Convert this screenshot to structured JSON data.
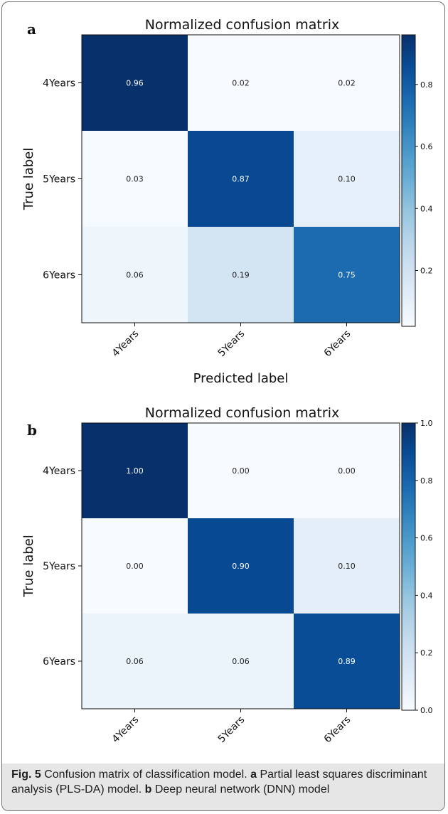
{
  "chart_data": [
    {
      "type": "heatmap",
      "panel": "a",
      "title": "Normalized confusion matrix",
      "xlabel": "Predicted label",
      "ylabel": "True label",
      "x_categories": [
        "4Years",
        "5Years",
        "6Years"
      ],
      "y_categories": [
        "4Years",
        "5Years",
        "6Years"
      ],
      "values": [
        [
          0.96,
          0.02,
          0.02
        ],
        [
          0.03,
          0.87,
          0.1
        ],
        [
          0.06,
          0.19,
          0.75
        ]
      ],
      "value_labels": [
        [
          "0.96",
          "0.02",
          "0.02"
        ],
        [
          "0.03",
          "0.87",
          "0.10"
        ],
        [
          "0.06",
          "0.19",
          "0.75"
        ]
      ],
      "colormap": "Blues",
      "colorbar_range": [
        0.02,
        0.96
      ],
      "colorbar_ticks": [
        "0.2",
        "0.4",
        "0.6",
        "0.8"
      ],
      "colorbar_tick_values": [
        0.2,
        0.4,
        0.6,
        0.8
      ],
      "show_xlabel": true
    },
    {
      "type": "heatmap",
      "panel": "b",
      "title": "Normalized confusion matrix",
      "xlabel": "",
      "ylabel": "True label",
      "x_categories": [
        "4Years",
        "5Years",
        "6Years"
      ],
      "y_categories": [
        "4Years",
        "5Years",
        "6Years"
      ],
      "values": [
        [
          1.0,
          0.0,
          0.0
        ],
        [
          0.0,
          0.9,
          0.1
        ],
        [
          0.06,
          0.06,
          0.89
        ]
      ],
      "value_labels": [
        [
          "1.00",
          "0.00",
          "0.00"
        ],
        [
          "0.00",
          "0.90",
          "0.10"
        ],
        [
          "0.06",
          "0.06",
          "0.89"
        ]
      ],
      "colormap": "Blues",
      "colorbar_range": [
        0.0,
        1.0
      ],
      "colorbar_ticks": [
        "0.0",
        "0.2",
        "0.4",
        "0.6",
        "0.8",
        "1.0"
      ],
      "colorbar_tick_values": [
        0.0,
        0.2,
        0.4,
        0.6,
        0.8,
        1.0
      ],
      "show_xlabel": false
    }
  ],
  "caption": {
    "fig_label": "Fig. 5",
    "text_1": "  Confusion matrix of classification model. ",
    "letter_a": "a",
    "text_2": " Partial least squares discriminant analysis (PLS-DA) model. ",
    "letter_b": "b",
    "text_3": " Deep neural network (DNN) model"
  }
}
